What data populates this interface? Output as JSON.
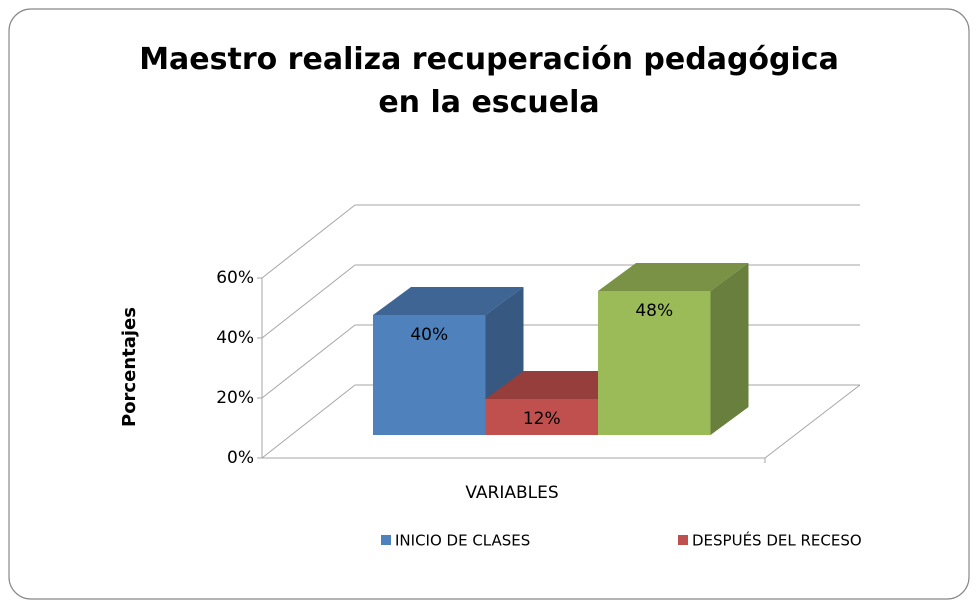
{
  "chart_data": {
    "type": "bar3d",
    "title": "Maestro realiza recuperación pedagógica en la escuela",
    "y_label": "Porcentajes",
    "x_label": "VARIABLES",
    "ylim": [
      0,
      60
    ],
    "yticks": [
      {
        "value": 0,
        "label": "0%"
      },
      {
        "value": 20,
        "label": "20%"
      },
      {
        "value": 40,
        "label": "40%"
      },
      {
        "value": 60,
        "label": "60%"
      }
    ],
    "grid": true,
    "legend": "bottom",
    "series": [
      {
        "name": "INICIO DE CLASES",
        "color": "#4f81bd",
        "values": [
          40
        ],
        "value_labels": [
          "40%"
        ]
      },
      {
        "name": "DESPUÉS DEL RECESO",
        "color": "#c0504d",
        "values": [
          12
        ],
        "value_labels": [
          "12%"
        ]
      },
      {
        "color": "#9bbb59",
        "values": [
          48
        ],
        "value_labels": [
          "48%"
        ]
      }
    ]
  }
}
